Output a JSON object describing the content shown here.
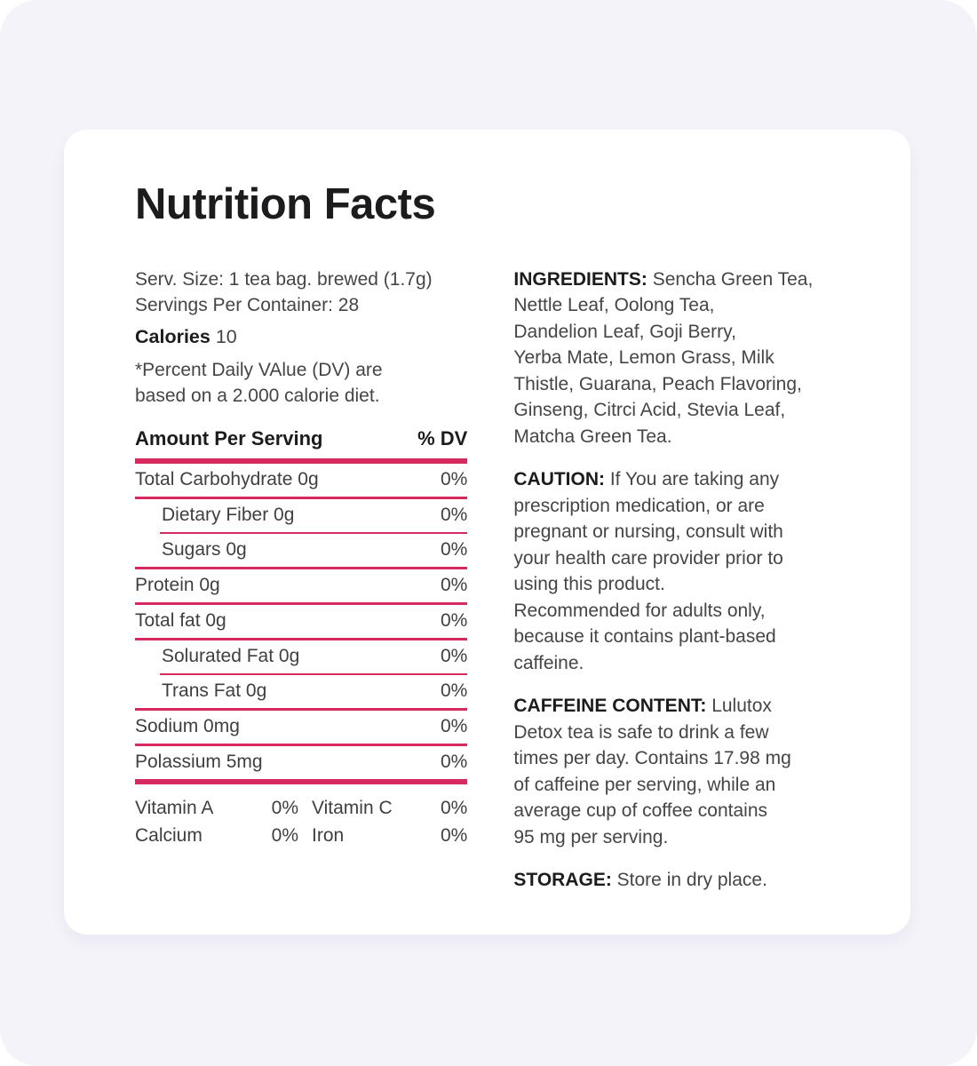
{
  "title": "Nutrition Facts",
  "colors": {
    "accent": "#d62a5e",
    "background": "#f4f3fa",
    "card": "#ffffff",
    "heading": "#1c1c1e",
    "body": "#454547"
  },
  "serving": {
    "size_line": "Serv. Size: 1 tea bag. brewed (1.7g)",
    "servings_line": "Servings Per Container: 28",
    "calories_label": "Calories",
    "calories_value": "10",
    "dv_note": "*Percent Daily VAlue (DV) are\nbased on a 2.000 calorie diet."
  },
  "table": {
    "header": {
      "amount_label": "Amount Per Serving",
      "dv_label": "% DV"
    },
    "rows": [
      {
        "name": "Total Carbohydrate 0g",
        "value": "0%",
        "indent": false,
        "divider": "full"
      },
      {
        "name": "Dietary Fiber 0g",
        "value": "0%",
        "indent": true,
        "divider": "inset"
      },
      {
        "name": "Sugars 0g",
        "value": "0%",
        "indent": true,
        "divider": "full"
      },
      {
        "name": "Protein 0g",
        "value": "0%",
        "indent": false,
        "divider": "full"
      },
      {
        "name": "Total fat 0g",
        "value": "0%",
        "indent": false,
        "divider": "full"
      },
      {
        "name": "Solurated Fat 0g",
        "value": "0%",
        "indent": true,
        "divider": "inset"
      },
      {
        "name": "Trans Fat 0g",
        "value": "0%",
        "indent": true,
        "divider": "full"
      },
      {
        "name": "Sodium 0mg",
        "value": "0%",
        "indent": false,
        "divider": "full"
      },
      {
        "name": "Polassium 5mg",
        "value": "0%",
        "indent": false,
        "divider": "thick"
      }
    ]
  },
  "vitamins": [
    {
      "name": "Vitamin A",
      "value": "0%"
    },
    {
      "name": "Vitamin C",
      "value": "0%"
    },
    {
      "name": "Calcium",
      "value": "0%"
    },
    {
      "name": "Iron",
      "value": "0%"
    }
  ],
  "sections": [
    {
      "label": "INGREDIENTS:",
      "text": "Sencha Green Tea,\nNettle Leaf, Oolong Tea,\nDandelion Leaf, Goji Berry,\nYerba Mate, Lemon Grass, Milk\nThistle, Guarana, Peach Flavoring,\nGinseng, Citrci Acid, Stevia Leaf,\nMatcha Green Tea."
    },
    {
      "label": "CAUTION:",
      "text": "If You are taking any\nprescription medication, or are\npregnant or nursing, consult with\nyour health care provider prior to\nusing this product.\nRecommended for adults only,\nbecause it contains plant-based\ncaffeine."
    },
    {
      "label": "CAFFEINE CONTENT:",
      "text": "Lulutox\nDetox tea is safe to drink a few\ntimes per day. Contains 17.98 mg\nof caffeine per serving, while an\naverage cup of coffee contains\n95 mg per serving."
    },
    {
      "label": "STORAGE:",
      "text": "Store in dry place."
    }
  ]
}
